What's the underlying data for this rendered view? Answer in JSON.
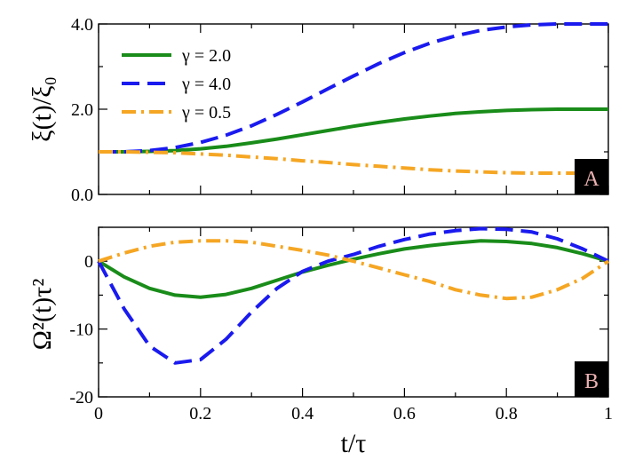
{
  "chart_data": [
    {
      "panel": "A",
      "type": "line",
      "ylabel": "ξ(t)/ξ₀",
      "xlabel": "",
      "xlim": [
        0,
        1
      ],
      "ylim": [
        0,
        4
      ],
      "x_ticks": [
        0,
        0.2,
        0.4,
        0.6,
        0.8,
        1.0
      ],
      "y_ticks": [
        0,
        2,
        4
      ],
      "y_tick_labels": [
        "0.0",
        "2.0",
        "4.0"
      ],
      "panel_label": "A",
      "legend_position": "top-left",
      "series": [
        {
          "name": "γ = 2.0",
          "color": "#198c19",
          "dash": "solid",
          "x": [
            0,
            0.05,
            0.1,
            0.15,
            0.2,
            0.25,
            0.3,
            0.35,
            0.4,
            0.45,
            0.5,
            0.55,
            0.6,
            0.65,
            0.7,
            0.75,
            0.8,
            0.85,
            0.9,
            0.95,
            1.0
          ],
          "values": [
            1.0,
            1.0,
            1.01,
            1.03,
            1.07,
            1.13,
            1.21,
            1.3,
            1.4,
            1.5,
            1.6,
            1.69,
            1.77,
            1.84,
            1.9,
            1.94,
            1.97,
            1.99,
            2.0,
            2.0,
            2.0
          ]
        },
        {
          "name": "γ = 4.0",
          "color": "#1a1aef",
          "dash": "dashed",
          "x": [
            0,
            0.05,
            0.1,
            0.15,
            0.2,
            0.25,
            0.3,
            0.35,
            0.4,
            0.45,
            0.5,
            0.55,
            0.6,
            0.65,
            0.7,
            0.75,
            0.8,
            0.85,
            0.9,
            0.95,
            1.0
          ],
          "values": [
            1.0,
            1.0,
            1.03,
            1.1,
            1.22,
            1.39,
            1.61,
            1.88,
            2.17,
            2.48,
            2.78,
            3.07,
            3.33,
            3.55,
            3.72,
            3.85,
            3.93,
            3.98,
            4.0,
            4.0,
            4.0
          ]
        },
        {
          "name": "γ = 0.5",
          "color": "#f5a623",
          "dash": "dashdot",
          "x": [
            0,
            0.05,
            0.1,
            0.15,
            0.2,
            0.25,
            0.3,
            0.35,
            0.4,
            0.45,
            0.5,
            0.55,
            0.6,
            0.65,
            0.7,
            0.75,
            0.8,
            0.85,
            0.9,
            0.95,
            1.0
          ],
          "values": [
            1.0,
            1.0,
            0.99,
            0.98,
            0.95,
            0.92,
            0.88,
            0.84,
            0.79,
            0.75,
            0.7,
            0.66,
            0.62,
            0.58,
            0.55,
            0.53,
            0.51,
            0.5,
            0.5,
            0.5,
            0.5
          ]
        }
      ]
    },
    {
      "panel": "B",
      "type": "line",
      "ylabel": "Ω²(t)τ²",
      "xlabel": "t/τ",
      "xlim": [
        0,
        1
      ],
      "ylim": [
        -20,
        5
      ],
      "x_ticks": [
        0,
        0.2,
        0.4,
        0.6,
        0.8,
        1.0
      ],
      "x_tick_labels": [
        "0",
        "0.2",
        "0.4",
        "0.6",
        "0.8",
        "1"
      ],
      "y_ticks": [
        -20,
        -10,
        0
      ],
      "y_tick_labels": [
        "-20",
        "-10",
        "0"
      ],
      "panel_label": "B",
      "series": [
        {
          "name": "γ = 2.0",
          "color": "#198c19",
          "dash": "solid",
          "x": [
            0,
            0.05,
            0.1,
            0.15,
            0.2,
            0.25,
            0.3,
            0.35,
            0.4,
            0.45,
            0.5,
            0.55,
            0.6,
            0.65,
            0.7,
            0.75,
            0.8,
            0.85,
            0.9,
            0.95,
            1.0
          ],
          "values": [
            0,
            -2.3,
            -4.0,
            -5.0,
            -5.3,
            -4.9,
            -4.0,
            -2.8,
            -1.6,
            -0.6,
            0.3,
            1.1,
            1.8,
            2.3,
            2.7,
            3.0,
            2.9,
            2.6,
            2.0,
            1.1,
            0
          ]
        },
        {
          "name": "γ = 4.0",
          "color": "#1a1aef",
          "dash": "dashed",
          "x": [
            0,
            0.05,
            0.1,
            0.15,
            0.2,
            0.25,
            0.3,
            0.35,
            0.4,
            0.45,
            0.5,
            0.55,
            0.6,
            0.65,
            0.7,
            0.75,
            0.8,
            0.85,
            0.9,
            0.95,
            1.0
          ],
          "values": [
            0,
            -7.0,
            -12.5,
            -15.0,
            -14.5,
            -11.5,
            -7.5,
            -4.0,
            -1.5,
            0.0,
            1.0,
            2.2,
            3.2,
            4.0,
            4.5,
            4.8,
            4.7,
            4.3,
            3.3,
            1.8,
            0
          ]
        },
        {
          "name": "γ = 0.5",
          "color": "#f5a623",
          "dash": "dashdot",
          "x": [
            0,
            0.05,
            0.1,
            0.15,
            0.2,
            0.25,
            0.3,
            0.35,
            0.4,
            0.45,
            0.5,
            0.55,
            0.6,
            0.65,
            0.7,
            0.75,
            0.8,
            0.85,
            0.9,
            0.95,
            1.0
          ],
          "values": [
            0,
            1.2,
            2.2,
            2.8,
            3.0,
            3.0,
            2.8,
            2.2,
            1.6,
            0.9,
            0.0,
            -1.0,
            -2.0,
            -3.0,
            -4.2,
            -5.0,
            -5.5,
            -5.3,
            -4.2,
            -2.5,
            0
          ]
        }
      ]
    }
  ]
}
